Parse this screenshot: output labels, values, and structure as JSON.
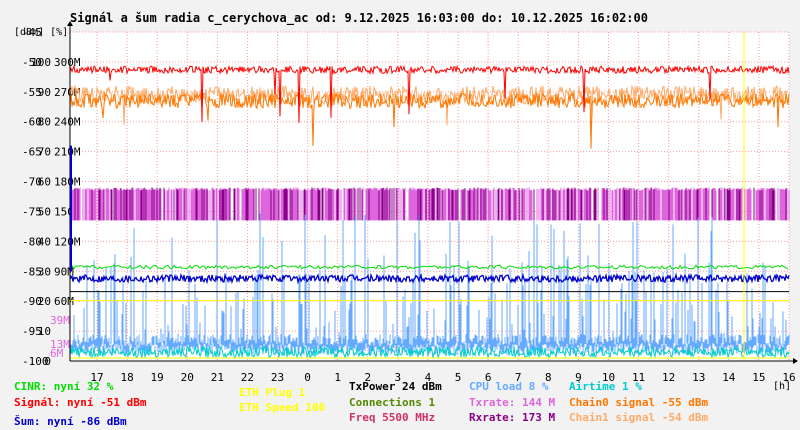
{
  "title": "Signál a šum radia c_cerychova_ac od: 9.12.2025 16:03:00 do: 10.12.2025 16:02:00",
  "units": {
    "y_dbm_pct": "[dBm] [%]",
    "x": "[h]"
  },
  "colors": {
    "signal": "#ff0000",
    "noise": "#0000cc",
    "cinr": "#00dd00",
    "chain0": "#ff7700",
    "chain1": "#ffaa66",
    "txrate": "#dd66dd",
    "rxrate": "#880088",
    "cpu": "#66aaff",
    "airtime": "#00cccc",
    "eth_plug": "#ffff00",
    "eth_speed": "#ffff00",
    "txpower": "#000000",
    "connections": "#558800",
    "freq": "#cc3366"
  },
  "chart_data": {
    "type": "line",
    "title": "Signál a šum radia c_cerychova_ac od: 9.12.2025 16:03:00 do: 10.12.2025 16:02:00",
    "xlabel": "[h]",
    "ylabel": "[dBm] [%]",
    "x_ticks": [
      "17",
      "18",
      "19",
      "20",
      "21",
      "22",
      "23",
      "0",
      "1",
      "2",
      "3",
      "4",
      "5",
      "6",
      "7",
      "8",
      "9",
      "10",
      "11",
      "12",
      "13",
      "14",
      "15",
      "16"
    ],
    "y_ticks_dbm": [
      "-45",
      "-50",
      "-55",
      "-60",
      "-65",
      "-70",
      "-75",
      "-80",
      "-85",
      "-90",
      "-95",
      "-100"
    ],
    "y_ticks_pct": [
      "100",
      "90",
      "80",
      "70",
      "60",
      "50",
      "40",
      "30",
      "20",
      "10",
      "0"
    ],
    "y_ticks_rate": [
      "300M",
      "270M",
      "240M",
      "210M",
      "180M",
      "150M",
      "120M",
      "90M",
      "60M"
    ],
    "extra_rate_labels": [
      "39M",
      "13M",
      "6M"
    ],
    "ylim_dbm": [
      -100,
      -45
    ],
    "grid": true,
    "series": [
      {
        "name": "Signál",
        "unit": "dBm",
        "level": -51
      },
      {
        "name": "Chain0 signal",
        "unit": "dBm",
        "level": -55
      },
      {
        "name": "Chain1 signal",
        "unit": "dBm",
        "level": -54
      },
      {
        "name": "Šum",
        "unit": "dBm",
        "level": -86
      },
      {
        "name": "CINR",
        "unit": "%",
        "level": 32
      },
      {
        "name": "Txrate",
        "unit": "M",
        "level": 144
      },
      {
        "name": "Rxrate",
        "unit": "M",
        "level": 173
      },
      {
        "name": "CPU load",
        "unit": "%",
        "level": 8
      },
      {
        "name": "Airtime",
        "unit": "%",
        "level": 1
      }
    ]
  },
  "legend": {
    "cinr": "CINR: nyní 32 %",
    "signal": "Signál: nyní -51 dBm",
    "noise": "Šum: nyní -86 dBm",
    "eth_plug": "ETH Plug 1",
    "eth_speed": "ETH Speed 100",
    "txpower": "TxPower 24 dBm",
    "connections": "Connections 1",
    "freq": "Freq 5500 MHz",
    "cpu": "CPU load 8 %",
    "txrate": "Txrate: 144 M",
    "rxrate": "Rxrate: 173 M",
    "airtime": "Airtime 1 %",
    "chain0": "Chain0 signal -55 dBm",
    "chain1": "Chain1 signal -54 dBm"
  }
}
